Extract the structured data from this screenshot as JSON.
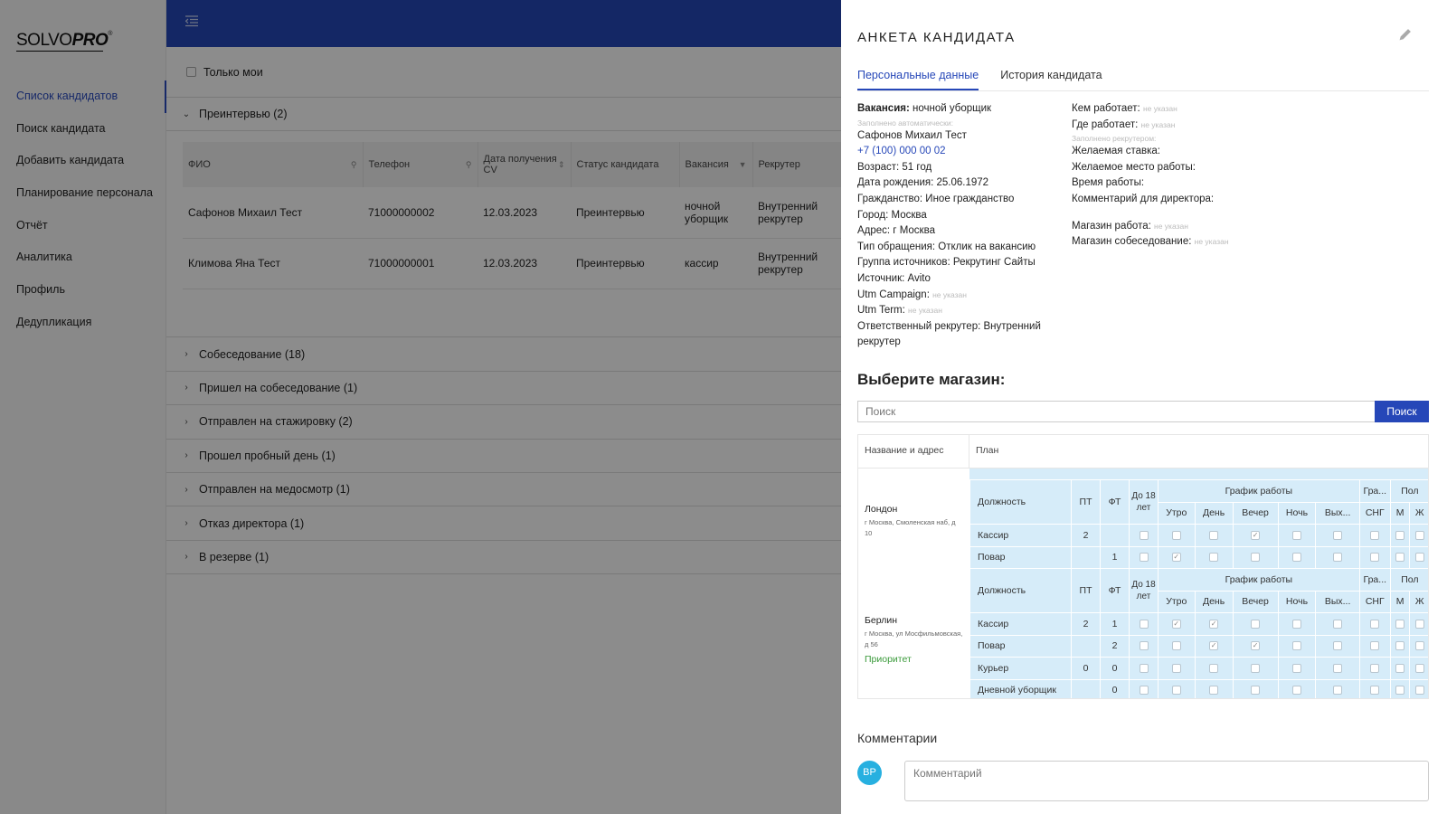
{
  "logo": {
    "solvo": "SOLVO",
    "pro": "PRO",
    "reg": "®"
  },
  "sidebar": {
    "items": [
      {
        "label": "Список кандидатов",
        "active": true
      },
      {
        "label": "Поиск кандидата"
      },
      {
        "label": "Добавить кандидата"
      },
      {
        "label": "Планирование персонала"
      },
      {
        "label": "Отчёт"
      },
      {
        "label": "Аналитика"
      },
      {
        "label": "Профиль"
      },
      {
        "label": "Дедупликация"
      }
    ]
  },
  "filter": {
    "only_mine": "Только мои"
  },
  "groups": {
    "open": "Преинтервью (2)",
    "closed": [
      "Собеседование (18)",
      "Пришел на собеседование (1)",
      "Отправлен на стажировку (2)",
      "Прошел пробный день (1)",
      "Отправлен на медосмотр (1)",
      "Отказ директора (1)",
      "В резерве (1)"
    ]
  },
  "table": {
    "headers": [
      "ФИО",
      "Телефон",
      "Дата получения CV",
      "Статус кандидата",
      "Вакансия",
      "Рекрутер"
    ],
    "rows": [
      [
        "Сафонов Михаил Тест",
        "71000000002",
        "12.03.2023",
        "Преинтервью",
        "ночной уборщик",
        "Внутренний рекрутер"
      ],
      [
        "Климова Яна Тест",
        "71000000001",
        "12.03.2023",
        "Преинтервью",
        "кассир",
        "Внутренний рекрутер"
      ]
    ]
  },
  "panel": {
    "title": "АНКЕТА КАНДИДАТА",
    "tabs": [
      "Персональные данные",
      "История кандидата"
    ],
    "vacancy_label": "Вакансия:",
    "vacancy_value": "ночной уборщик",
    "auto_filled": "Заполнено автоматически:",
    "name": "Сафонов Михаил Тест",
    "phone": "+7 (100) 000 00 02",
    "age": "Возраст: 51 год",
    "birth": "Дата рождения: 25.06.1972",
    "citizenship": "Гражданство: Иное гражданство",
    "city": "Город: Москва",
    "address": "Адрес: г Москва",
    "appeal": "Тип обращения: Отклик на вакансию",
    "source_group": "Группа источников: Рекрутинг Сайты",
    "source": "Источник: Avito",
    "utm_campaign": "Utm Campaign:",
    "utm_term": "Utm Term:",
    "recruiter": "Ответственный рекрутер: Внутренний рекрутер",
    "not_specified": "не указан",
    "who_works": "Кем работает:",
    "where_works": "Где работает:",
    "recruiter_filled": "Заполнено рекрутером:",
    "rate": "Желаемая ставка:",
    "place": "Желаемое место работы:",
    "work_time": "Время работы:",
    "director_comment": "Комментарий для директора:",
    "shop_work": "Магазин работа:",
    "shop_interview": "Магазин собеседование:",
    "choose_store": "Выберите магазин:",
    "search_placeholder": "Поиск",
    "search_button": "Поиск",
    "stores_head": [
      "Название и адрес",
      "План"
    ],
    "grid_head": {
      "position": "Должность",
      "pt": "ПТ",
      "ft": "ФТ",
      "age18": "До 18 лет",
      "schedule": "График работы",
      "gra": "Гра...",
      "sex": "Пол",
      "shifts": [
        "Утро",
        "День",
        "Вечер",
        "Ночь",
        "Вых..."
      ],
      "sng": "СНГ",
      "m": "М",
      "f": "Ж"
    },
    "stores": [
      {
        "name": "Лондон",
        "address": "г Москва, Смоленская наб, д 10",
        "priority": "",
        "rows": [
          {
            "position": "Кассир",
            "pt": "2",
            "ft": "",
            "checks": [
              0,
              0,
              0,
              1,
              0,
              0,
              0,
              0,
              0
            ]
          },
          {
            "position": "Повар",
            "pt": "",
            "ft": "1",
            "checks": [
              0,
              1,
              0,
              0,
              0,
              0,
              0,
              0,
              0
            ]
          }
        ]
      },
      {
        "name": "Берлин",
        "address": "г Москва, ул Мосфильмовская, д 56",
        "priority": "Приоритет",
        "rows": [
          {
            "position": "Кассир",
            "pt": "2",
            "ft": "1",
            "checks": [
              0,
              1,
              1,
              0,
              0,
              0,
              0,
              0,
              0
            ]
          },
          {
            "position": "Повар",
            "pt": "",
            "ft": "2",
            "checks": [
              0,
              0,
              1,
              1,
              0,
              0,
              0,
              0,
              0
            ]
          },
          {
            "position": "Курьер",
            "pt": "0",
            "ft": "0",
            "checks": [
              0,
              0,
              0,
              0,
              0,
              0,
              0,
              0,
              0
            ]
          },
          {
            "position": "Дневной уборщик",
            "pt": "",
            "ft": "0",
            "checks": [
              0,
              0,
              0,
              0,
              0,
              0,
              0,
              0,
              0
            ]
          }
        ]
      }
    ],
    "comments_title": "Комментарии",
    "avatar": "ВР",
    "comment_placeholder": "Комментарий"
  }
}
